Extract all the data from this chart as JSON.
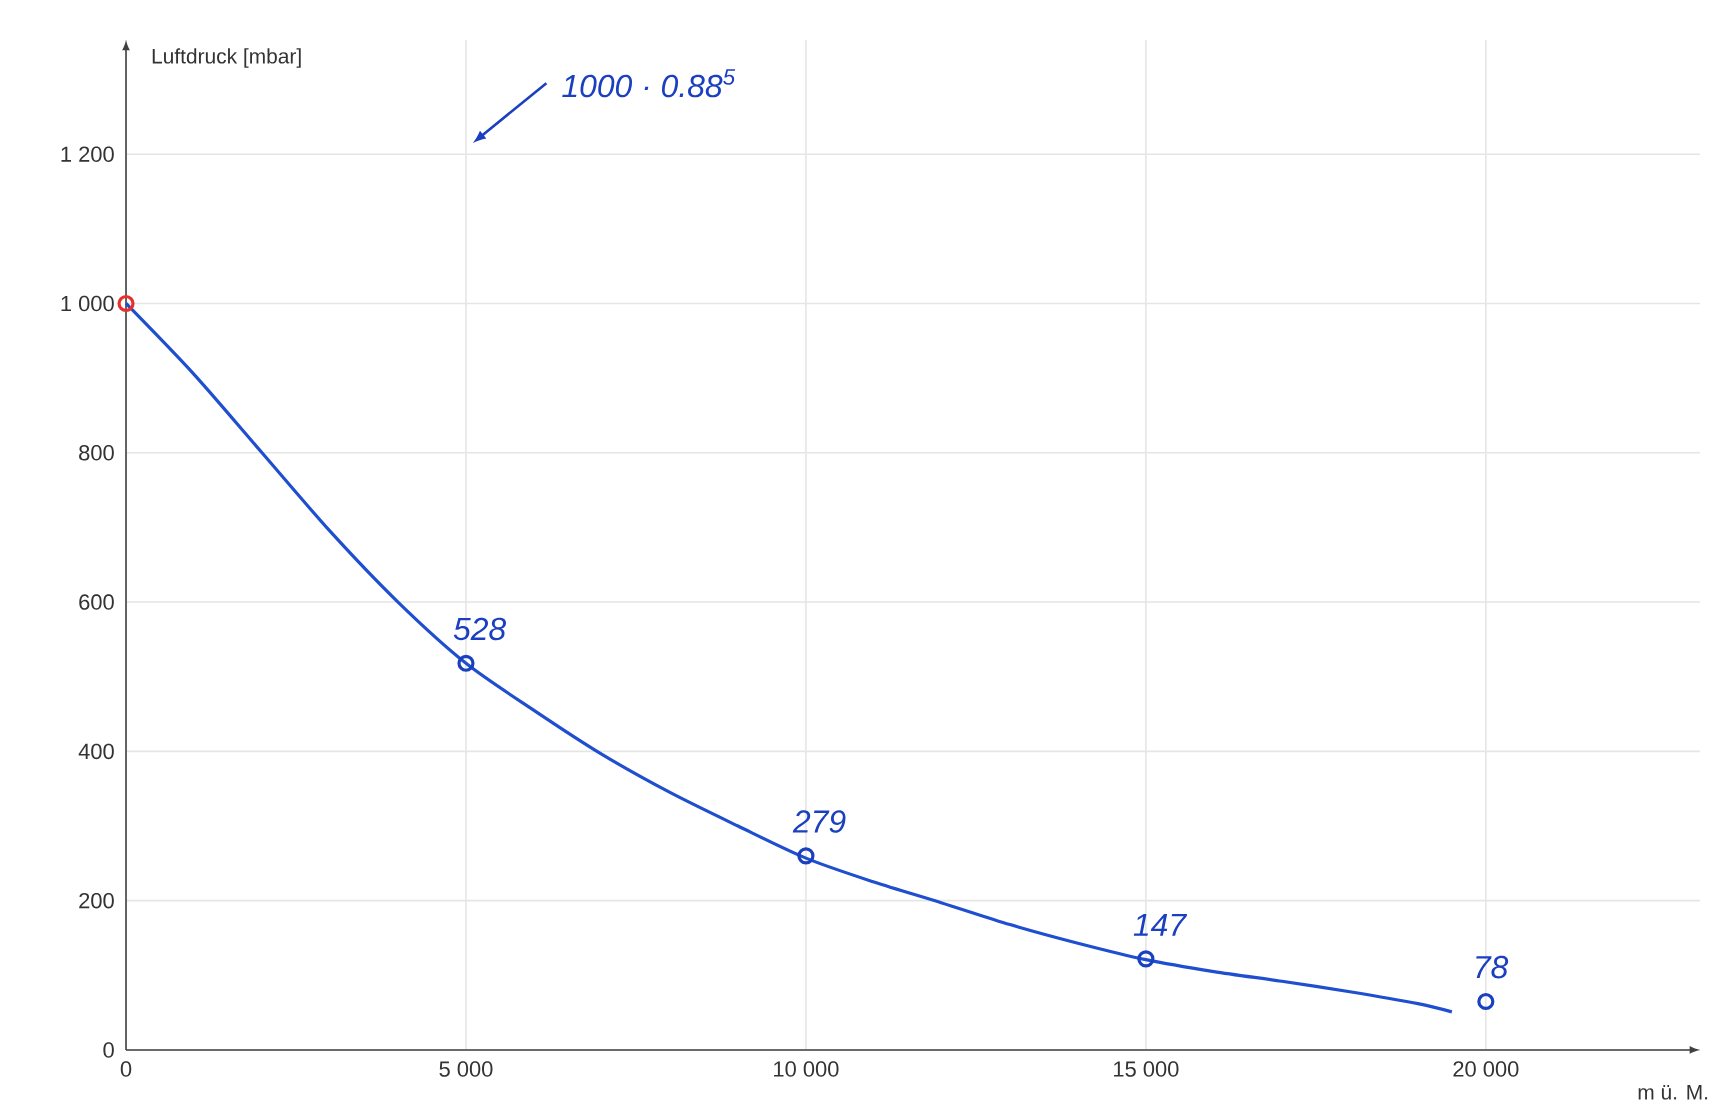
{
  "chart_data": {
    "type": "line",
    "ylabel": "Luftdruck [mbar]",
    "xlabel": "m ü. M.",
    "xlim": [
      0,
      23150
    ],
    "ylim": [
      0,
      1353
    ],
    "xticks": [
      0,
      {
        "value": 5000,
        "label": "5 000"
      },
      {
        "value": 10000,
        "label": "10 000"
      },
      {
        "value": 15000,
        "label": "15 000"
      },
      {
        "value": 20000,
        "label": "20 000"
      }
    ],
    "yticks": [
      0,
      200,
      400,
      600,
      800,
      {
        "value": 1000,
        "label": "1 000"
      },
      {
        "value": 1200,
        "label": "1 200"
      }
    ],
    "grid": true,
    "series": [
      {
        "color": "#1f4fcf",
        "x": [
          0,
          1000,
          2000,
          3000,
          4000,
          5000,
          6000,
          7000,
          8000,
          9000,
          10000,
          11000,
          12000,
          13000,
          14000,
          15000,
          16000,
          17000,
          18000,
          19000,
          19500
        ],
        "values": [
          1000,
          905,
          800,
          695,
          600,
          518,
          455,
          396,
          345,
          300,
          257,
          225,
          197,
          168,
          143,
          121,
          105,
          92,
          78,
          62,
          51
        ]
      },
      {
        "type": "scatter",
        "marker": "circle",
        "colors": [
          "#e8302a",
          "#1a3fbf",
          "#1a3fbf",
          "#1a3fbf",
          "#1a3fbf"
        ],
        "x": [
          0,
          5000,
          10000,
          15000,
          20000
        ],
        "values": [
          1000,
          518,
          260,
          122,
          65
        ]
      }
    ],
    "annotations": [
      "1000 · 0.88$^{5}$",
      {
        "text": "528",
        "x": 5000,
        "y": 518
      },
      {
        "text": "279",
        "x": 10000,
        "y": 260
      },
      {
        "text": "147",
        "x": 15000,
        "y": 122
      },
      {
        "text": "78",
        "x": 20000,
        "y": 65
      }
    ]
  }
}
